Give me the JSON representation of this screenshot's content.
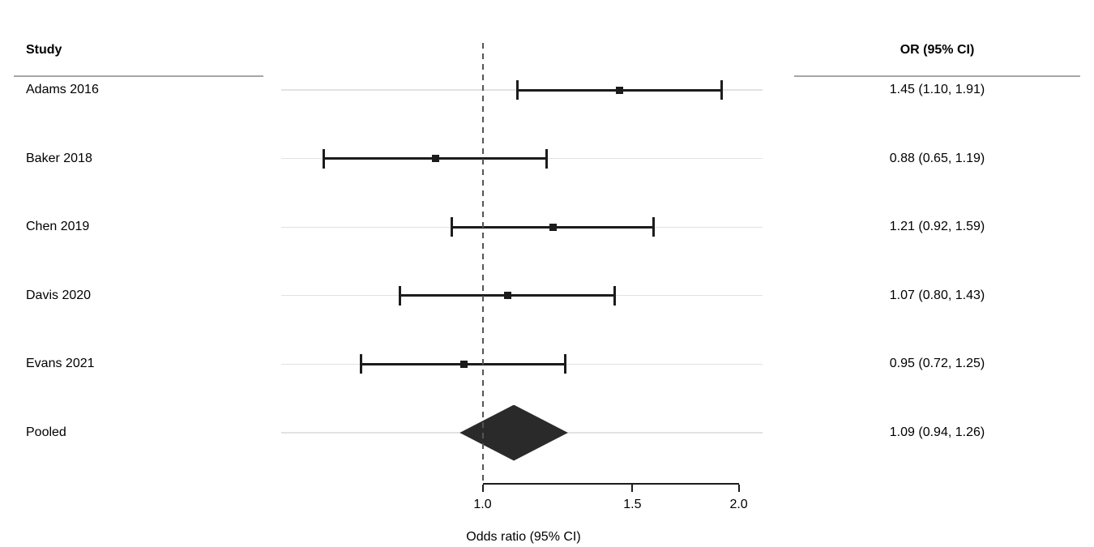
{
  "columns": {
    "study_header": "Study",
    "or_header": "OR (95% CI)"
  },
  "chart_data": {
    "type": "forest",
    "title": "",
    "x_axis": {
      "label": "Odds ratio (95% CI)",
      "scale": "log",
      "ticks": [
        1.0,
        1.5,
        2.0
      ],
      "tick_labels": [
        "1.0",
        "1.5",
        "2.0"
      ],
      "reference_line": 1.0,
      "grid": "horizontal-row-guides"
    },
    "columns": {
      "study_header": "Study",
      "or_header": "OR (95% CI)"
    },
    "studies": [
      {
        "label": "Adams 2016",
        "or": 1.45,
        "ci_lower": 1.1,
        "ci_upper": 1.91,
        "or_text": "1.45 (1.10, 1.91)"
      },
      {
        "label": "Baker 2018",
        "or": 0.88,
        "ci_lower": 0.65,
        "ci_upper": 1.19,
        "or_text": "0.88 (0.65, 1.19)"
      },
      {
        "label": "Chen 2019",
        "or": 1.21,
        "ci_lower": 0.92,
        "ci_upper": 1.59,
        "or_text": "1.21 (0.92, 1.59)"
      },
      {
        "label": "Davis 2020",
        "or": 1.07,
        "ci_lower": 0.8,
        "ci_upper": 1.43,
        "or_text": "1.07 (0.80, 1.43)"
      },
      {
        "label": "Evans 2021",
        "or": 0.95,
        "ci_lower": 0.72,
        "ci_upper": 1.25,
        "or_text": "0.95 (0.72, 1.25)"
      }
    ],
    "pooled": {
      "label": "Pooled",
      "or": 1.09,
      "ci_lower": 0.94,
      "ci_upper": 1.26,
      "or_text": "1.09 (0.94, 1.26)"
    }
  },
  "colors": {
    "background": "#ffffff",
    "text": "#000000",
    "ink": "#1c1c1c",
    "diamond": "#2a2a2a",
    "reference_line": "#555555",
    "gridline": "#e2e2e2",
    "separator": "#a6a6a6"
  }
}
